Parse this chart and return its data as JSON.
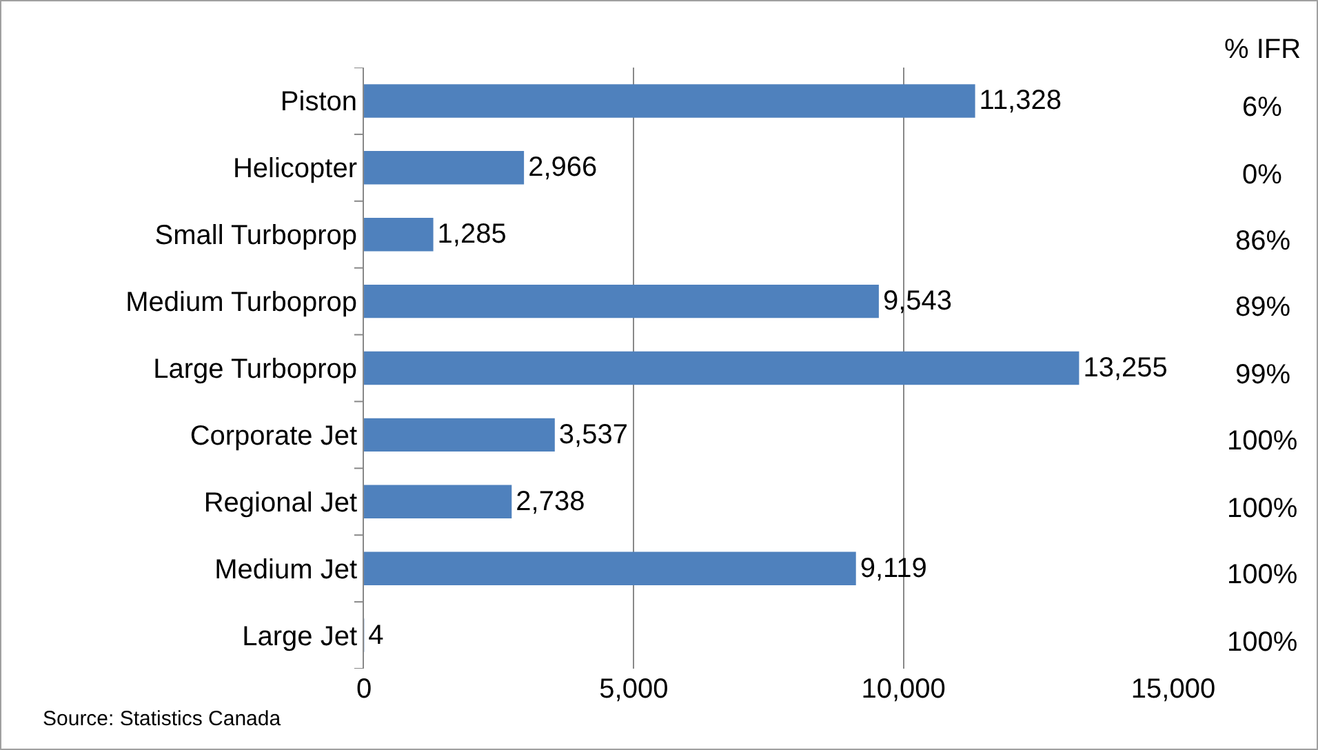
{
  "chart_data": {
    "type": "bar",
    "orientation": "horizontal",
    "categories": [
      "Piston",
      "Helicopter",
      "Small Turboprop",
      "Medium Turboprop",
      "Large Turboprop",
      "Corporate Jet",
      "Regional Jet",
      "Medium Jet",
      "Large Jet"
    ],
    "values": [
      11328,
      2966,
      1285,
      9543,
      13255,
      3537,
      2738,
      9119,
      4
    ],
    "color": "#4f81bd",
    "value_labels": [
      "11,328",
      "2,966",
      "1,285",
      "9,543",
      "13,255",
      "3,537",
      "2,738",
      "9,119",
      "4"
    ],
    "xlim": [
      0,
      15000
    ],
    "xticks": [
      {
        "value": 0,
        "label": "0"
      },
      {
        "value": 5000,
        "label": "5,000"
      },
      {
        "value": 10000,
        "label": "10,000"
      },
      {
        "value": 15000,
        "label": "15,000"
      }
    ],
    "grid": "x",
    "annotations": [
      "% IFR",
      "6%",
      "0%",
      "86%",
      "89%",
      "99%",
      "100%",
      "100%",
      "100%",
      "100%",
      "Source: Statistics Canada"
    ]
  }
}
